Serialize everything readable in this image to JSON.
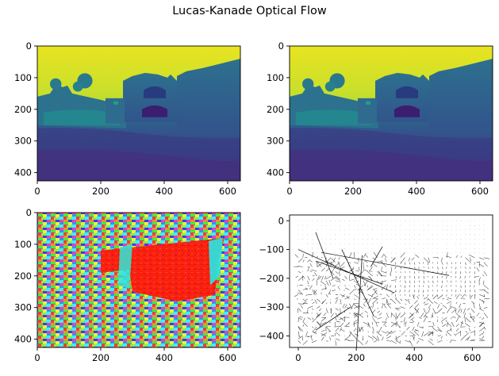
{
  "figure": {
    "suptitle": "Lucas-Kanade Optical Flow"
  },
  "chart_data": [
    {
      "type": "heatmap",
      "panel": "frame-1",
      "colormap": "viridis",
      "xlim": [
        0,
        640
      ],
      "ylim": [
        426,
        0
      ],
      "xticks": [
        0,
        200,
        400,
        600
      ],
      "yticks": [
        0,
        100,
        200,
        300,
        400
      ],
      "xtick_labels": [
        "0",
        "200",
        "400",
        "600"
      ],
      "ytick_labels": [
        "0",
        "100",
        "200",
        "300",
        "400"
      ],
      "title": "",
      "xlabel": "",
      "ylabel": ""
    },
    {
      "type": "heatmap",
      "panel": "frame-2",
      "colormap": "viridis",
      "xlim": [
        0,
        640
      ],
      "ylim": [
        426,
        0
      ],
      "xticks": [
        0,
        200,
        400,
        600
      ],
      "yticks": [
        0,
        100,
        200,
        300,
        400
      ],
      "xtick_labels": [
        "0",
        "200",
        "400",
        "600"
      ],
      "ytick_labels": [
        "0",
        "100",
        "200",
        "300",
        "400"
      ],
      "title": "",
      "xlabel": "",
      "ylabel": ""
    },
    {
      "type": "heatmap",
      "panel": "flow-hsv",
      "colormap": "hsv",
      "xlim": [
        0,
        640
      ],
      "ylim": [
        426,
        0
      ],
      "xticks": [
        0,
        200,
        400,
        600
      ],
      "yticks": [
        0,
        100,
        200,
        300,
        400
      ],
      "xtick_labels": [
        "0",
        "200",
        "400",
        "600"
      ],
      "ytick_labels": [
        "0",
        "100",
        "200",
        "300",
        "400"
      ],
      "title": "",
      "xlabel": "",
      "ylabel": ""
    },
    {
      "type": "scatter",
      "panel": "flow-quiver",
      "xlim": [
        -30,
        670
      ],
      "ylim": [
        -440,
        20
      ],
      "xticks": [
        0,
        200,
        400,
        600
      ],
      "yticks": [
        0,
        -100,
        -200,
        -300,
        -400
      ],
      "xtick_labels": [
        "0",
        "200",
        "400",
        "600"
      ],
      "ytick_labels": [
        "0",
        "−100",
        "−200",
        "−300",
        "−400"
      ],
      "arrow_color": "#000000",
      "title": "",
      "xlabel": "",
      "ylabel": ""
    }
  ]
}
